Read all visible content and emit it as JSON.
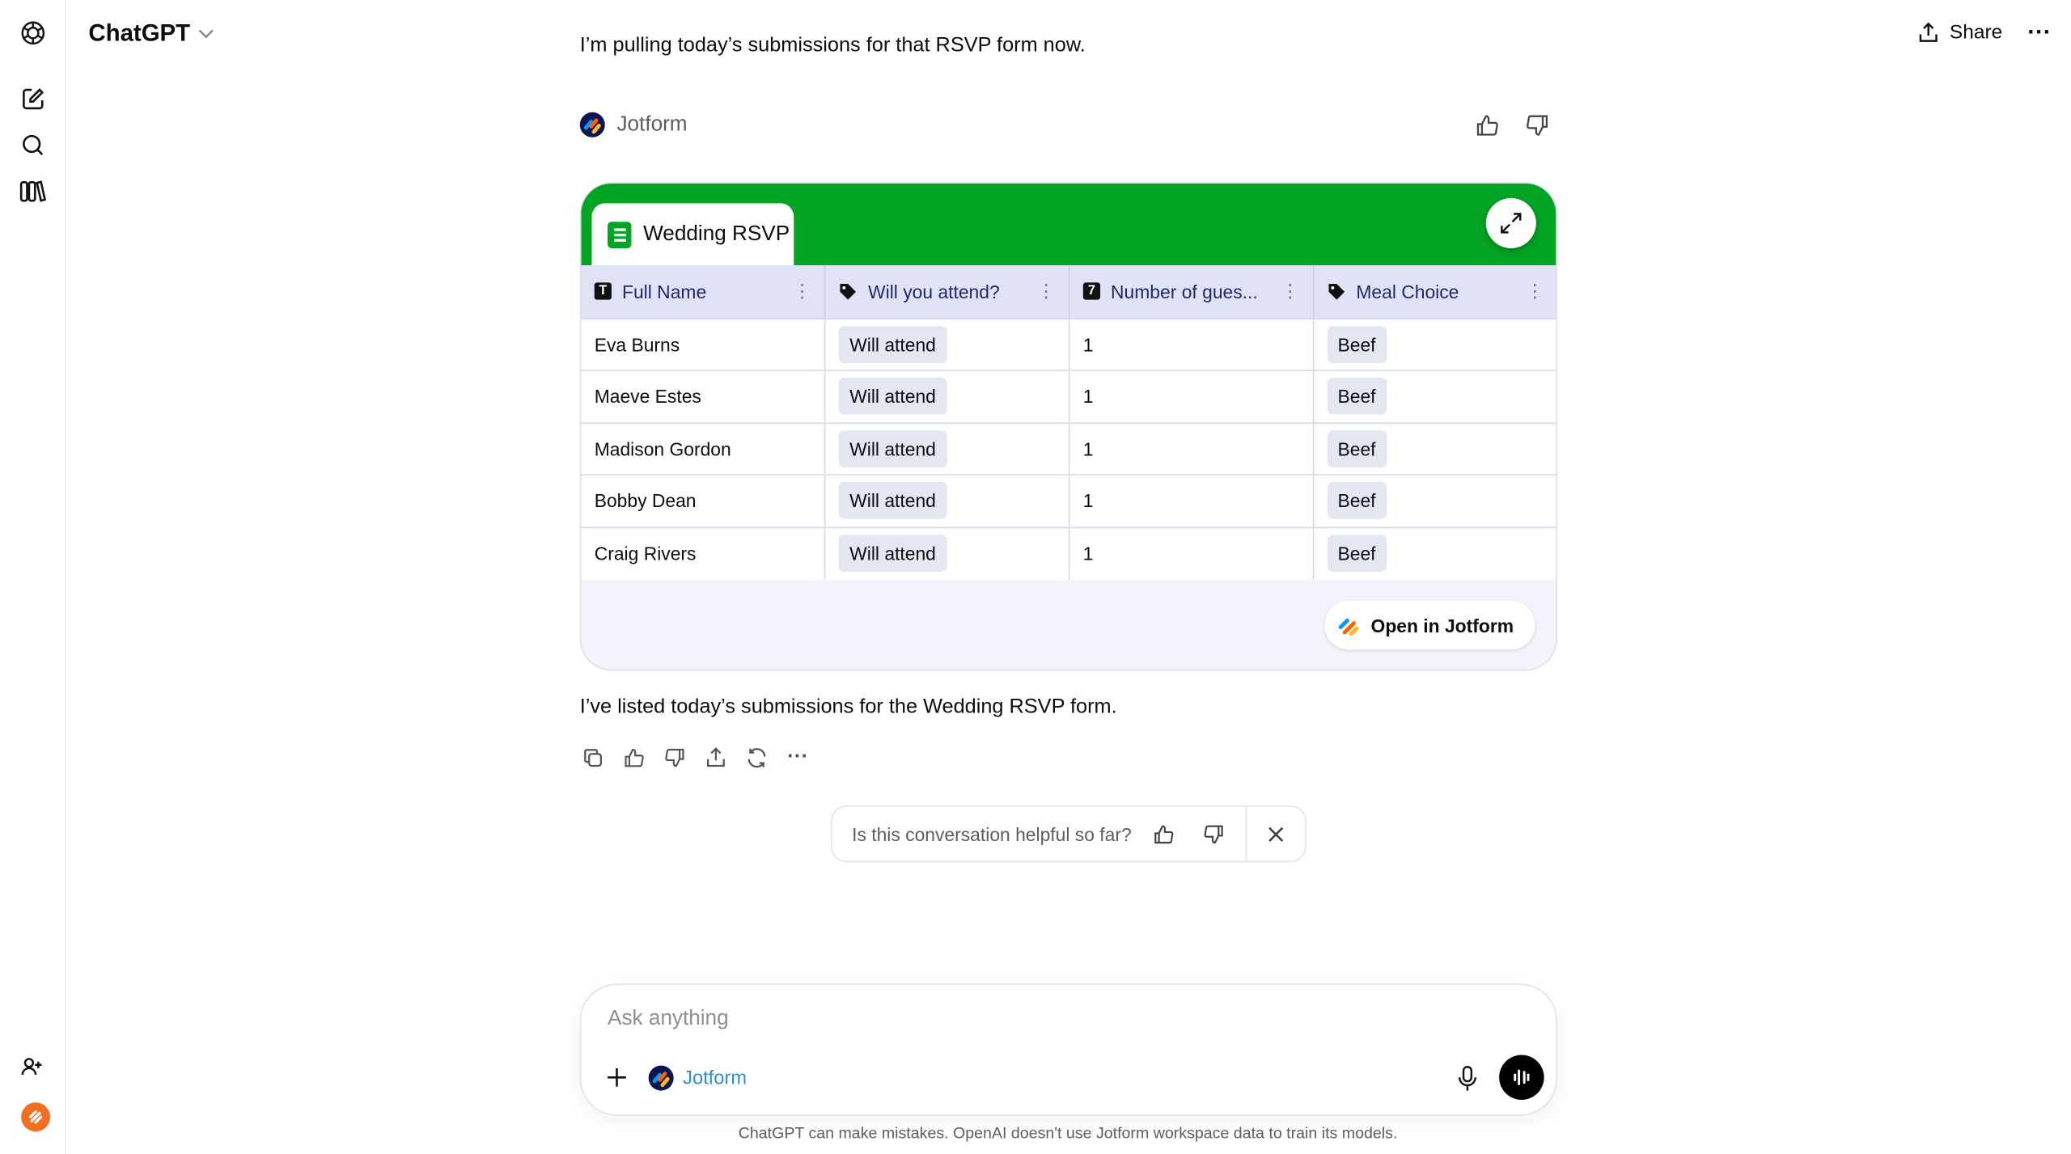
{
  "header": {
    "title": "ChatGPT",
    "share_label": "Share"
  },
  "sidebar": {
    "icons": [
      "openai-logo-icon",
      "new-chat-icon",
      "search-icon",
      "library-icon",
      "invite-people-icon",
      "user-avatar"
    ]
  },
  "messages": {
    "assistant_intro": "I’m pulling today’s submissions for that RSVP form now.",
    "tool_name": "Jotform",
    "assistant_result": "I’ve listed today’s submissions for the Wedding RSVP form."
  },
  "card": {
    "form_title": "Wedding RSVP",
    "columns": [
      {
        "label": "Full Name",
        "icon": "T"
      },
      {
        "label": "Will you attend?",
        "icon": "tag"
      },
      {
        "label": "Number of gues...",
        "icon": "7"
      },
      {
        "label": "Meal Choice",
        "icon": "tag"
      }
    ],
    "rows": [
      [
        "Eva Burns",
        "Will attend",
        "1",
        "Beef"
      ],
      [
        "Maeve Estes",
        "Will attend",
        "1",
        "Beef"
      ],
      [
        "Madison Gordon",
        "Will attend",
        "1",
        "Beef"
      ],
      [
        "Bobby Dean",
        "Will attend",
        "1",
        "Beef"
      ],
      [
        "Craig Rivers",
        "Will attend",
        "1",
        "Beef"
      ]
    ],
    "open_button": "Open in Jotform",
    "header_color": "#02a523"
  },
  "feedback": {
    "question": "Is this conversation helpful so far?"
  },
  "composer": {
    "placeholder": "Ask anything",
    "tool_chip": "Jotform",
    "tool_color": "#2a8fd6"
  },
  "disclaimer": "ChatGPT can make mistakes. OpenAI doesn't use Jotform workspace data to train its models."
}
